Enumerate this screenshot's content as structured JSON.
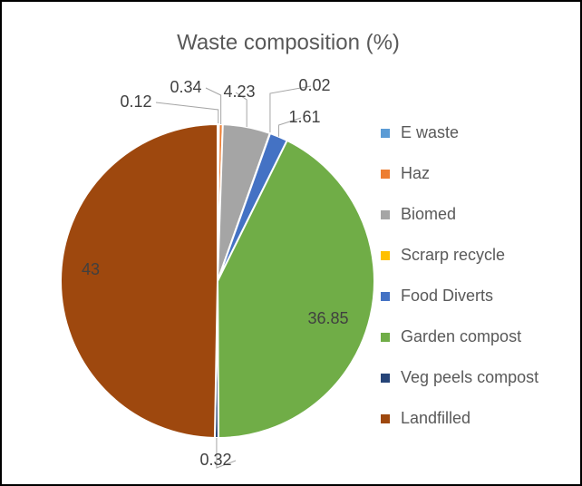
{
  "chart_data": {
    "type": "pie",
    "title": "Waste composition (%)",
    "categories": [
      "E waste",
      "Haz",
      "Biomed",
      "Scrarp recycle",
      "Food Diverts",
      "Garden compost",
      "Veg peels compost",
      "Landfilled"
    ],
    "values": [
      0.12,
      0.34,
      4.23,
      0.02,
      1.61,
      36.85,
      0.32,
      43
    ],
    "colors": [
      "#5b9bd5",
      "#ed7d31",
      "#a5a5a5",
      "#ffc000",
      "#4472c4",
      "#70ad47",
      "#264478",
      "#9e480e"
    ],
    "legend": "right"
  }
}
